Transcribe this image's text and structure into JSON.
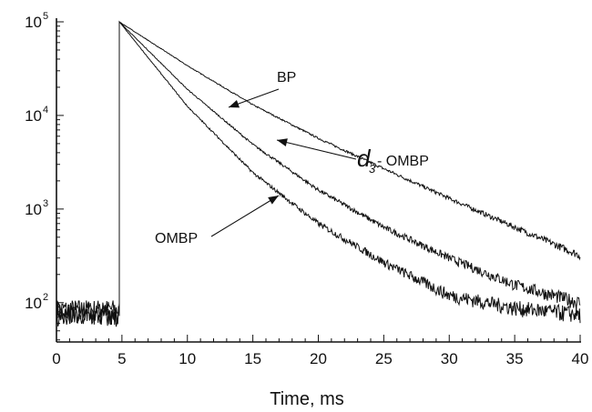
{
  "chart_data": {
    "type": "line",
    "title": "",
    "xlabel": "Time, ms",
    "ylabel": "",
    "xlim": [
      0,
      40
    ],
    "ylim_log10": [
      1.58,
      5.0
    ],
    "yscale": "log",
    "grid": false,
    "x_ticks": [
      0,
      5,
      10,
      15,
      20,
      25,
      30,
      35,
      40
    ],
    "y_ticks": [
      {
        "base": "10",
        "exp": "2",
        "value": 100
      },
      {
        "base": "10",
        "exp": "3",
        "value": 1000
      },
      {
        "base": "10",
        "exp": "4",
        "value": 10000
      },
      {
        "base": "10",
        "exp": "5",
        "value": 100000
      }
    ],
    "rise_time_ms": 4.8,
    "peak_value": 100000,
    "series": [
      {
        "name": "BP",
        "baseline": 85,
        "x": [
          4.8,
          10,
          15,
          20,
          25,
          30,
          35,
          40
        ],
        "y": [
          100000,
          34000,
          13000,
          5700,
          2700,
          1300,
          640,
          320
        ]
      },
      {
        "name": "d3- OMBP",
        "baseline": 80,
        "x": [
          4.8,
          10,
          15,
          20,
          25,
          30,
          35,
          40
        ],
        "y": [
          100000,
          19000,
          4900,
          1600,
          640,
          300,
          155,
          100
        ]
      },
      {
        "name": "OMBP",
        "baseline": 72,
        "x": [
          4.8,
          10,
          15,
          20,
          25,
          30,
          35,
          40
        ],
        "y": [
          100000,
          12500,
          2450,
          700,
          270,
          120,
          88,
          75
        ]
      }
    ],
    "annotations": [
      {
        "text": "BP",
        "series": "BP"
      },
      {
        "prefix": "d",
        "sub": "3",
        "suffix": "- OMBP",
        "series": "d3- OMBP"
      },
      {
        "text": "OMBP",
        "series": "OMBP"
      }
    ]
  }
}
